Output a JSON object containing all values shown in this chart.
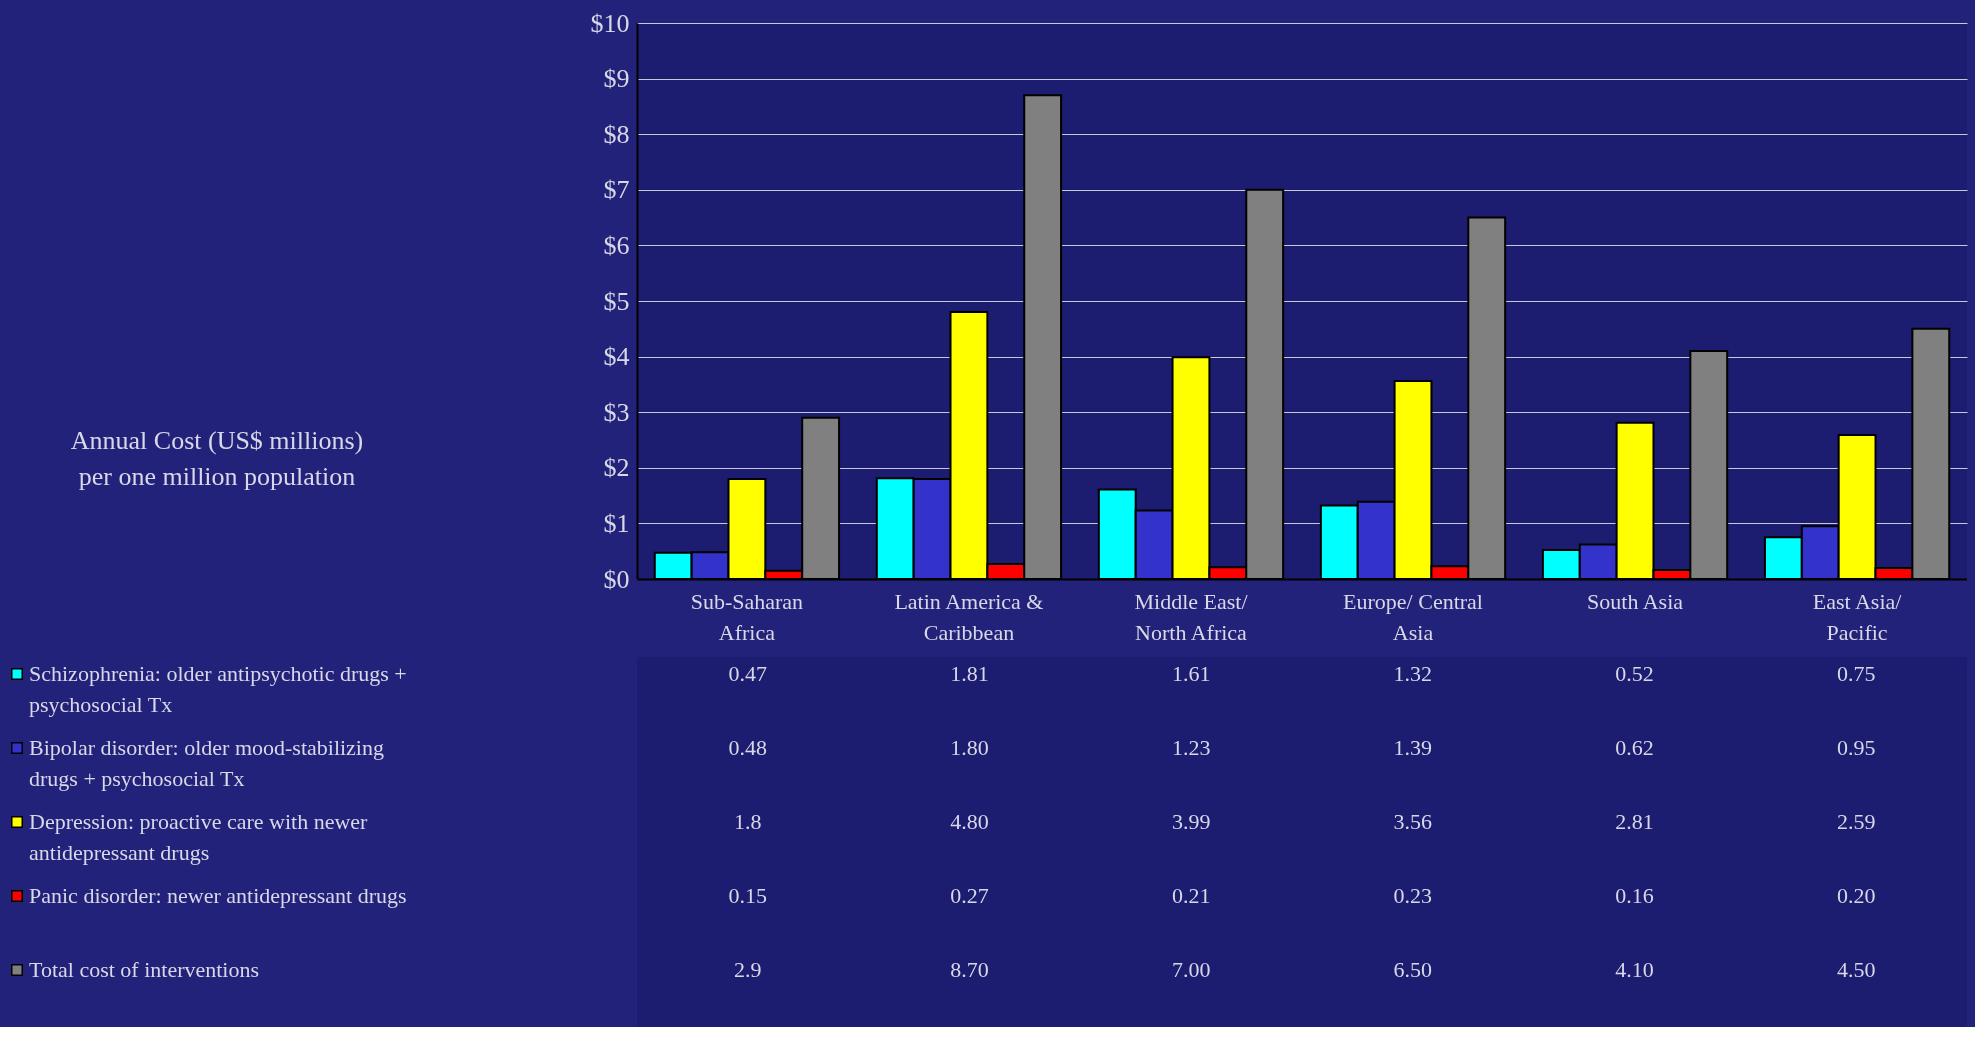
{
  "chart_data": {
    "type": "bar",
    "annotations": [
      "Annual Cost (US$ millions) per one million population"
    ],
    "legend": "bottom left",
    "categories": [
      "Sub-Saharan Africa",
      "Latin America & Caribbean",
      "Middle East/ North Africa",
      "Europe/ Central Asia",
      "South Asia",
      "East Asia/ Pacific"
    ],
    "series": [
      {
        "name": "Schizophrenia: older antipsychotic drugs + psychosocial Tx",
        "color": "#00ffff",
        "values": [
          0.47,
          1.81,
          1.61,
          1.32,
          0.52,
          0.75
        ],
        "value_labels": [
          "0.47",
          "1.81",
          "1.61",
          "1.32",
          "0.52",
          "0.75"
        ]
      },
      {
        "name": "Bipolar disorder: older mood-stabilizing drugs + psychosocial Tx",
        "color": "#3333cc",
        "values": [
          0.48,
          1.8,
          1.23,
          1.39,
          0.62,
          0.95
        ],
        "value_labels": [
          "0.48",
          "1.80",
          "1.23",
          "1.39",
          "0.62",
          "0.95"
        ]
      },
      {
        "name": "Depression: proactive care with newer antidepressant drugs",
        "color": "#ffff00",
        "values": [
          1.8,
          4.8,
          3.99,
          3.56,
          2.81,
          2.59
        ],
        "value_labels": [
          "1.8",
          "4.80",
          "3.99",
          "3.56",
          "2.81",
          "2.59"
        ]
      },
      {
        "name": "Panic disorder: newer antidepressant drugs",
        "color": "#ff0000",
        "values": [
          0.15,
          0.27,
          0.21,
          0.23,
          0.16,
          0.2
        ],
        "value_labels": [
          "0.15",
          "0.27",
          "0.21",
          "0.23",
          "0.16",
          "0.20"
        ]
      },
      {
        "name": "Total cost of interventions",
        "color": "#808080",
        "values": [
          2.9,
          8.7,
          7.0,
          6.5,
          4.1,
          4.5
        ],
        "value_labels": [
          "2.9",
          "8.70",
          "7.00",
          "6.50",
          "4.10",
          "4.50"
        ]
      }
    ],
    "ylim": [
      0,
      10
    ],
    "yticks": [
      {
        "value": 0,
        "label": "$0"
      },
      {
        "value": 1,
        "label": "$1"
      },
      {
        "value": 2,
        "label": "$2"
      },
      {
        "value": 3,
        "label": "$3"
      },
      {
        "value": 4,
        "label": "$4"
      },
      {
        "value": 5,
        "label": "$5"
      },
      {
        "value": 6,
        "label": "$6"
      },
      {
        "value": 7,
        "label": "$7"
      },
      {
        "value": 8,
        "label": "$8"
      },
      {
        "value": 9,
        "label": "$9"
      },
      {
        "value": 10,
        "label": "$10"
      }
    ],
    "grid": "y"
  }
}
